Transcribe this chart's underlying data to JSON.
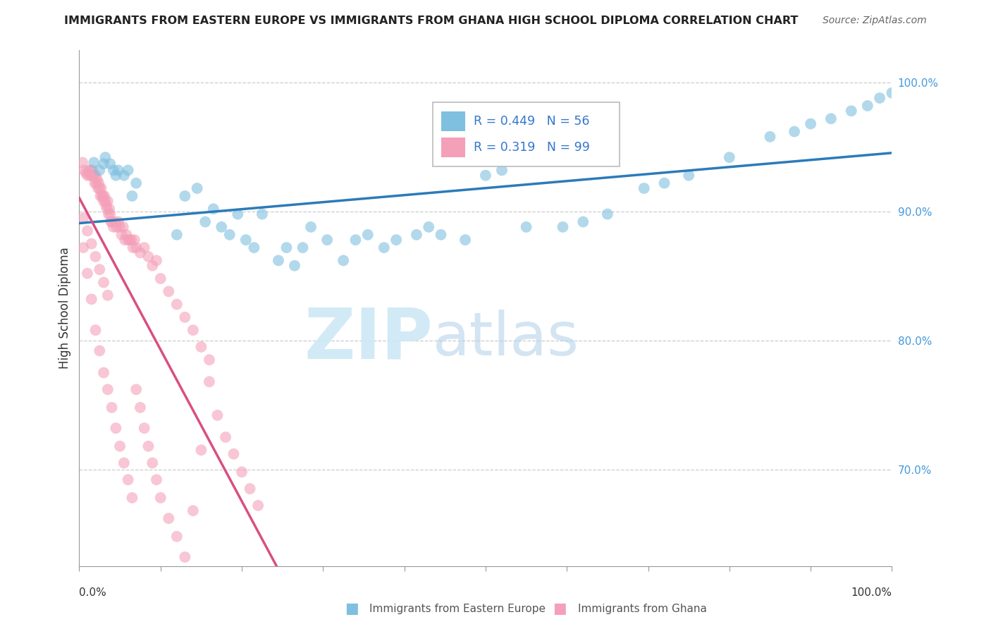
{
  "title": "IMMIGRANTS FROM EASTERN EUROPE VS IMMIGRANTS FROM GHANA HIGH SCHOOL DIPLOMA CORRELATION CHART",
  "source": "Source: ZipAtlas.com",
  "ylabel": "High School Diploma",
  "watermark_zip": "ZIP",
  "watermark_atlas": "atlas",
  "legend_blue_r": "R = 0.449",
  "legend_blue_n": "N = 56",
  "legend_pink_r": "R = 0.319",
  "legend_pink_n": "N = 99",
  "legend_blue_label": "Immigrants from Eastern Europe",
  "legend_pink_label": "Immigrants from Ghana",
  "blue_color": "#7fbfdf",
  "pink_color": "#f4a0b8",
  "trend_blue_color": "#2b7bba",
  "trend_pink_color": "#d94f82",
  "xmin": 0.0,
  "xmax": 1.0,
  "ymin": 0.625,
  "ymax": 1.025,
  "ytick_vals": [
    0.7,
    0.8,
    0.9,
    1.0
  ],
  "ytick_labels": [
    "70.0%",
    "80.0%",
    "90.0%",
    "100.0%"
  ],
  "blue_x": [
    0.018,
    0.025,
    0.03,
    0.032,
    0.038,
    0.042,
    0.045,
    0.048,
    0.055,
    0.06,
    0.065,
    0.07,
    0.12,
    0.13,
    0.145,
    0.155,
    0.165,
    0.175,
    0.185,
    0.195,
    0.205,
    0.215,
    0.225,
    0.245,
    0.255,
    0.265,
    0.275,
    0.285,
    0.305,
    0.325,
    0.34,
    0.355,
    0.375,
    0.39,
    0.415,
    0.43,
    0.445,
    0.475,
    0.5,
    0.52,
    0.55,
    0.595,
    0.62,
    0.65,
    0.695,
    0.72,
    0.75,
    0.8,
    0.85,
    0.88,
    0.9,
    0.925,
    0.95,
    0.97,
    0.985,
    1.0
  ],
  "blue_y": [
    0.938,
    0.932,
    0.937,
    0.942,
    0.937,
    0.932,
    0.928,
    0.932,
    0.928,
    0.932,
    0.912,
    0.922,
    0.882,
    0.912,
    0.918,
    0.892,
    0.902,
    0.888,
    0.882,
    0.898,
    0.878,
    0.872,
    0.898,
    0.862,
    0.872,
    0.858,
    0.872,
    0.888,
    0.878,
    0.862,
    0.878,
    0.882,
    0.872,
    0.878,
    0.882,
    0.888,
    0.882,
    0.878,
    0.928,
    0.932,
    0.888,
    0.888,
    0.892,
    0.898,
    0.918,
    0.922,
    0.928,
    0.942,
    0.958,
    0.962,
    0.968,
    0.972,
    0.978,
    0.982,
    0.988,
    0.992
  ],
  "pink_x": [
    0.004,
    0.006,
    0.008,
    0.01,
    0.012,
    0.013,
    0.014,
    0.015,
    0.016,
    0.017,
    0.018,
    0.019,
    0.02,
    0.021,
    0.022,
    0.023,
    0.024,
    0.025,
    0.026,
    0.027,
    0.028,
    0.029,
    0.03,
    0.031,
    0.032,
    0.033,
    0.034,
    0.035,
    0.036,
    0.037,
    0.038,
    0.039,
    0.04,
    0.042,
    0.044,
    0.046,
    0.048,
    0.05,
    0.052,
    0.054,
    0.056,
    0.058,
    0.06,
    0.062,
    0.064,
    0.066,
    0.068,
    0.07,
    0.075,
    0.08,
    0.085,
    0.09,
    0.095,
    0.1,
    0.11,
    0.12,
    0.13,
    0.14,
    0.15,
    0.16,
    0.005,
    0.01,
    0.015,
    0.02,
    0.025,
    0.03,
    0.035,
    0.04,
    0.045,
    0.05,
    0.055,
    0.06,
    0.065,
    0.07,
    0.075,
    0.08,
    0.085,
    0.09,
    0.095,
    0.1,
    0.11,
    0.12,
    0.13,
    0.14,
    0.15,
    0.16,
    0.17,
    0.18,
    0.19,
    0.2,
    0.21,
    0.22,
    0.005,
    0.01,
    0.015,
    0.02,
    0.025,
    0.03,
    0.035
  ],
  "pink_y": [
    0.938,
    0.932,
    0.93,
    0.928,
    0.932,
    0.928,
    0.932,
    0.928,
    0.932,
    0.928,
    0.928,
    0.922,
    0.928,
    0.922,
    0.925,
    0.918,
    0.922,
    0.918,
    0.912,
    0.918,
    0.912,
    0.912,
    0.908,
    0.912,
    0.908,
    0.905,
    0.902,
    0.908,
    0.898,
    0.902,
    0.898,
    0.892,
    0.892,
    0.888,
    0.892,
    0.888,
    0.892,
    0.888,
    0.882,
    0.888,
    0.878,
    0.882,
    0.878,
    0.878,
    0.878,
    0.872,
    0.878,
    0.872,
    0.868,
    0.872,
    0.865,
    0.858,
    0.862,
    0.848,
    0.838,
    0.828,
    0.818,
    0.808,
    0.795,
    0.785,
    0.872,
    0.852,
    0.832,
    0.808,
    0.792,
    0.775,
    0.762,
    0.748,
    0.732,
    0.718,
    0.705,
    0.692,
    0.678,
    0.762,
    0.748,
    0.732,
    0.718,
    0.705,
    0.692,
    0.678,
    0.662,
    0.648,
    0.632,
    0.668,
    0.715,
    0.768,
    0.742,
    0.725,
    0.712,
    0.698,
    0.685,
    0.672,
    0.895,
    0.885,
    0.875,
    0.865,
    0.855,
    0.845,
    0.835
  ]
}
